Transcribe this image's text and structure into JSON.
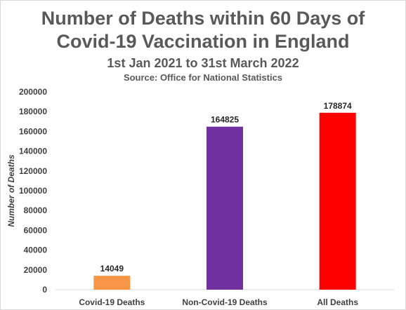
{
  "chart_data": {
    "type": "bar",
    "title": "Number of Deaths within 60 Days of Covid-19 Vaccination in England",
    "title_lines": [
      "Number of Deaths within 60 Days of",
      "Covid-19 Vaccination in England"
    ],
    "subtitle": "1st Jan 2021 to 31st March 2022",
    "source": "Source: Office for National Statistics",
    "xlabel": "",
    "ylabel": "Number of Deaths",
    "categories": [
      "Covid-19 Deaths",
      "Non-Covid-19 Deaths",
      "All Deaths"
    ],
    "values": [
      14049,
      164825,
      178874
    ],
    "data_labels": [
      "14049",
      "164825",
      "178874"
    ],
    "colors": [
      "#f79646",
      "#7030a0",
      "#ff0000"
    ],
    "ylim": [
      0,
      200000
    ],
    "yticks": [
      0,
      20000,
      40000,
      60000,
      80000,
      100000,
      120000,
      140000,
      160000,
      180000,
      200000
    ],
    "ytick_labels": [
      "0",
      "20000",
      "40000",
      "60000",
      "80000",
      "100000",
      "120000",
      "140000",
      "160000",
      "180000",
      "200000"
    ],
    "grid": false,
    "legend": "none"
  }
}
